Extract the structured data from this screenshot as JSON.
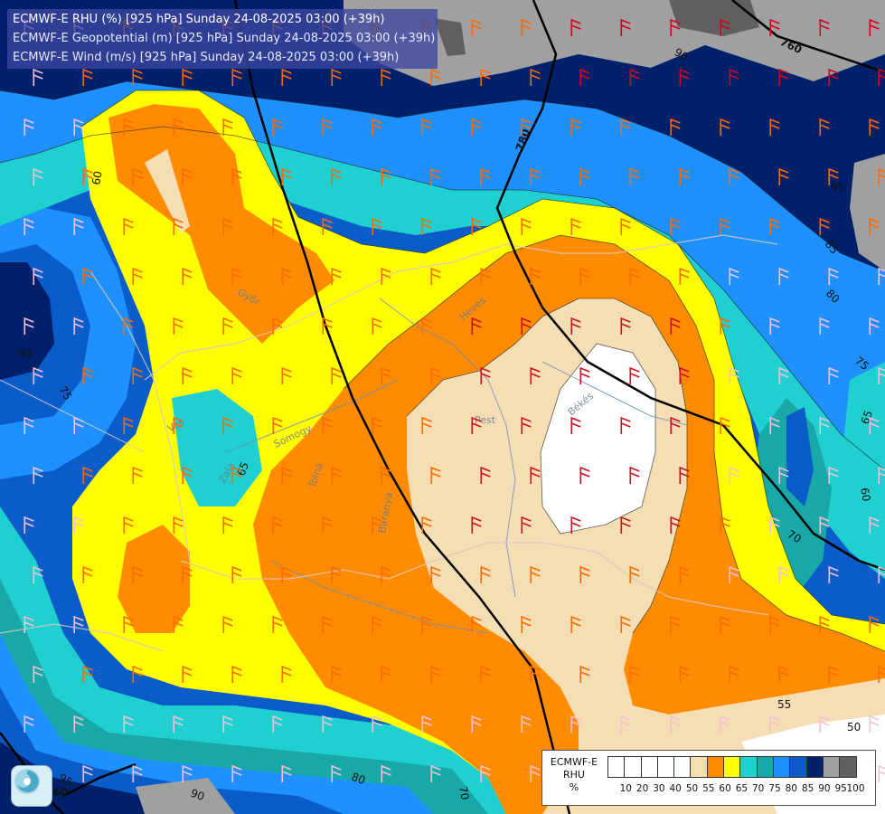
{
  "title": {
    "line1": "ECMWF-E RHU (%) [925 hPa] Sunday 24-08-2025 03:00 (+39h)",
    "line2": "ECMWF-E Geopotential (m) [925 hPa] Sunday 24-08-2025 03:00 (+39h)",
    "line3": "ECMWF-E Wind (m/s) [925 hPa] Sunday 24-08-2025 03:00 (+39h)"
  },
  "legend": {
    "label_model": "ECMWF-E",
    "label_var": "RHU",
    "label_unit": "%",
    "ticks": [
      "10",
      "20",
      "30",
      "40",
      "50",
      "55",
      "60",
      "65",
      "70",
      "75",
      "80",
      "85",
      "90",
      "95",
      "100"
    ],
    "colors": [
      "#ffffff",
      "#ffffff",
      "#ffffff",
      "#ffffff",
      "#ffffff",
      "#f5deb3",
      "#ff8c00",
      "#ffff00",
      "#20d0d0",
      "#18a8a8",
      "#1e90ff",
      "#0a5cc8",
      "#00206a",
      "#a0a0a0",
      "#606060"
    ]
  },
  "geopotential_labels": [
    "760",
    "780",
    "760"
  ],
  "rhu_contour_labels": [
    "90",
    "95",
    "90",
    "85",
    "75",
    "60",
    "65",
    "80",
    "70",
    "75",
    "80",
    "65",
    "60",
    "55",
    "50",
    "70",
    "95",
    "90",
    "80",
    "70",
    "65"
  ],
  "place_labels": [
    "Pest",
    "Békés",
    "Somogy",
    "Zala",
    "Vas",
    "Tolna",
    "Győr",
    "Heves",
    "Baranya"
  ],
  "logo": {
    "name": "provider-logo"
  }
}
